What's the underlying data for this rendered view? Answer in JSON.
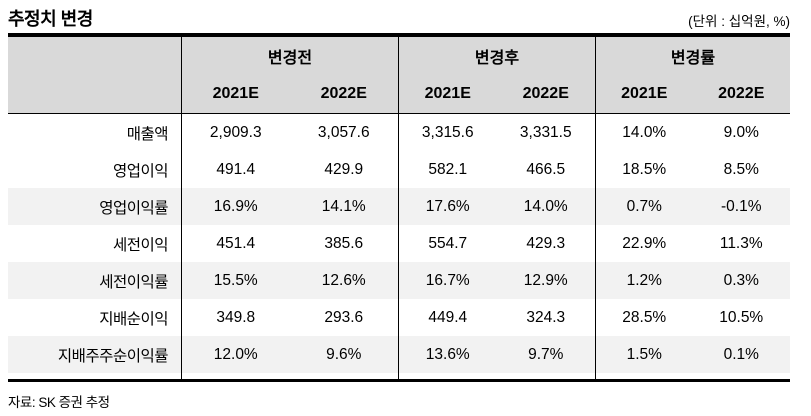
{
  "page": {
    "title": "추정치 변경",
    "unit_label": "(단위 : 십억원, %)",
    "source": "자료: SK 증권 추정"
  },
  "colors": {
    "header_bg": "#D9D9D9",
    "shaded_row_bg": "#F2F2F2",
    "border": "#000000"
  },
  "table": {
    "groups": [
      {
        "label": "변경전"
      },
      {
        "label": "변경후"
      },
      {
        "label": "변경률"
      }
    ],
    "year_headers": [
      "2021E",
      "2022E",
      "2021E",
      "2022E",
      "2021E",
      "2022E"
    ],
    "rows": [
      {
        "label": "매출액",
        "values": [
          "2,909.3",
          "3,057.6",
          "3,315.6",
          "3,331.5",
          "14.0%",
          "9.0%"
        ]
      },
      {
        "label": "영업이익",
        "values": [
          "491.4",
          "429.9",
          "582.1",
          "466.5",
          "18.5%",
          "8.5%"
        ]
      },
      {
        "label": "영업이익률",
        "values": [
          "16.9%",
          "14.1%",
          "17.6%",
          "14.0%",
          "0.7%",
          "-0.1%"
        ]
      },
      {
        "label": "세전이익",
        "values": [
          "451.4",
          "385.6",
          "554.7",
          "429.3",
          "22.9%",
          "11.3%"
        ]
      },
      {
        "label": "세전이익률",
        "values": [
          "15.5%",
          "12.6%",
          "16.7%",
          "12.9%",
          "1.2%",
          "0.3%"
        ]
      },
      {
        "label": "지배순이익",
        "values": [
          "349.8",
          "293.6",
          "449.4",
          "324.3",
          "28.5%",
          "10.5%"
        ]
      },
      {
        "label": "지배주주순이익률",
        "values": [
          "12.0%",
          "9.6%",
          "13.6%",
          "9.7%",
          "1.5%",
          "0.1%"
        ]
      }
    ]
  }
}
